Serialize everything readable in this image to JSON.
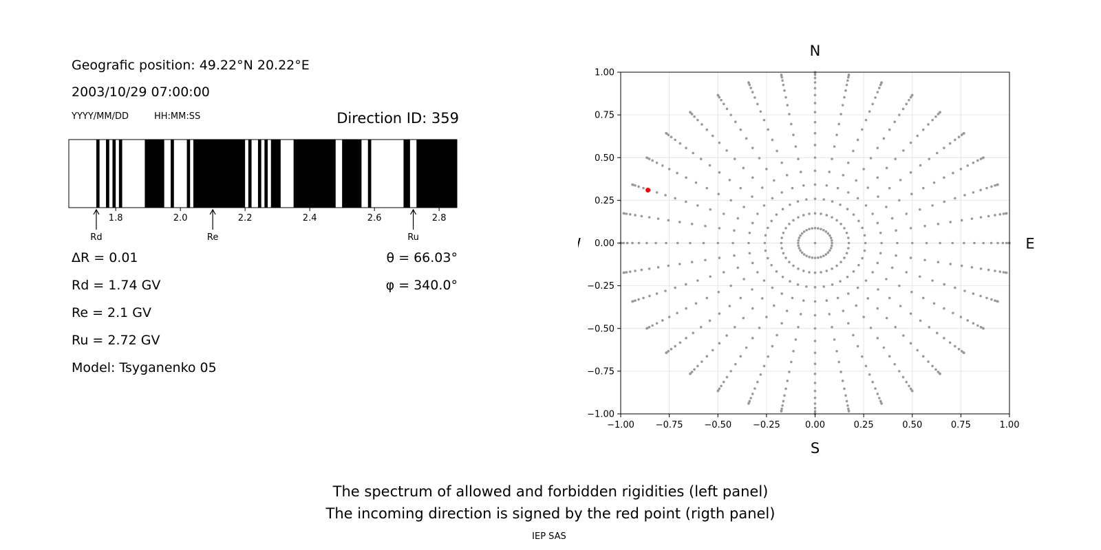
{
  "header": {
    "position": "Geografic position: 49.22°N 20.22°E",
    "datetime": "2003/10/29 07:00:00",
    "date_format": "YYYY/MM/DD",
    "time_format": "HH:MM:SS",
    "direction_id": "Direction ID: 359"
  },
  "params": {
    "delta_r": "ΔR = 0.01",
    "rd": "Rd = 1.74 GV",
    "re": "Re = 2.1 GV",
    "ru": "Ru = 2.72 GV",
    "model": "Model: Tsyganenko 05",
    "theta": "θ = 66.03°",
    "phi": "φ = 340.0°"
  },
  "compass": {
    "n": "N",
    "s": "S",
    "e": "E",
    "w": "W"
  },
  "caption": {
    "line1": "The spectrum of allowed and forbidden rigidities (left panel)",
    "line2": "The incoming direction is signed by the red point (rigth panel)",
    "credit": "IEP SAS"
  },
  "colors": {
    "allowed": "#ffffff",
    "forbidden": "#000000",
    "grid_dots": "#999999",
    "highlight": "#ff0000"
  },
  "chart_data": [
    {
      "type": "bar",
      "xlim": [
        1.655,
        2.855
      ],
      "xticks": [
        1.8,
        2.0,
        2.2,
        2.4,
        2.6,
        2.8
      ],
      "xtick_labels": [
        "1.8",
        "2.0",
        "2.2",
        "2.4",
        "2.6",
        "2.8"
      ],
      "forbidden_intervals": [
        [
          1.74,
          1.75
        ],
        [
          1.77,
          1.78
        ],
        [
          1.79,
          1.8
        ],
        [
          1.81,
          1.82
        ],
        [
          1.89,
          1.95
        ],
        [
          1.97,
          1.98
        ],
        [
          2.02,
          2.03
        ],
        [
          2.04,
          2.2
        ],
        [
          2.21,
          2.22
        ],
        [
          2.24,
          2.25
        ],
        [
          2.26,
          2.27
        ],
        [
          2.28,
          2.31
        ],
        [
          2.35,
          2.48
        ],
        [
          2.5,
          2.56
        ],
        [
          2.58,
          2.59
        ],
        [
          2.69,
          2.71
        ],
        [
          2.73,
          2.855
        ]
      ],
      "markers": [
        {
          "label": "Rd",
          "value": 1.74
        },
        {
          "label": "Re",
          "value": 2.1
        },
        {
          "label": "Ru",
          "value": 2.72
        }
      ]
    },
    {
      "type": "scatter",
      "xlim": [
        -1.0,
        1.0
      ],
      "ylim": [
        -1.0,
        1.0
      ],
      "grid": true,
      "ticks": [
        -1.0,
        -0.75,
        -0.5,
        -0.25,
        0.0,
        0.25,
        0.5,
        0.75,
        1.0
      ],
      "tick_labels": [
        "−1.00",
        "−0.75",
        "−0.50",
        "−0.25",
        "0.00",
        "0.25",
        "0.50",
        "0.75",
        "1.00"
      ],
      "pattern": {
        "azimuths_deg": [
          0,
          10,
          20,
          30,
          40,
          50,
          60,
          70,
          80,
          90,
          100,
          110,
          120,
          130,
          140,
          150,
          160,
          170,
          180,
          190,
          200,
          210,
          220,
          230,
          240,
          250,
          260,
          270,
          280,
          290,
          300,
          310,
          320,
          330,
          340,
          350
        ],
        "zenith_step_deg": 5,
        "zenith_max_deg": 90
      },
      "highlight": {
        "x": -0.86,
        "y": 0.31,
        "theta_deg": 66.03,
        "phi_deg": 340.0
      }
    }
  ]
}
